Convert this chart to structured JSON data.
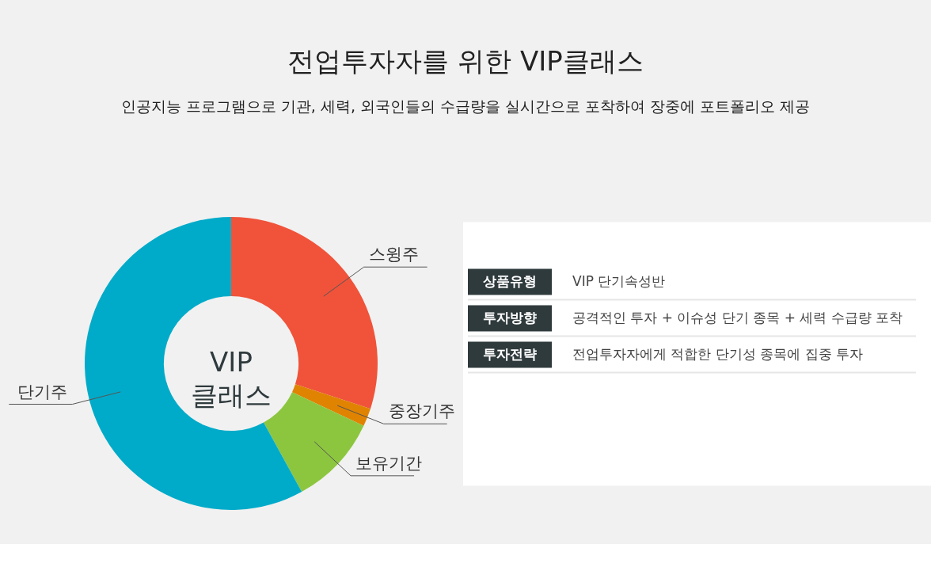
{
  "chart_data": [
    {
      "type": "donut",
      "title": "전업투자자를 위한 VIP클래스",
      "subtitle": "인공지능 프로그램으로 기관, 세력, 외국인들의 수급량을 실시간으로 포착하여 장중에 포트폴리오 제공",
      "categories": [
        "스윙주",
        "중장기주",
        "보유기간",
        "단기주"
      ],
      "values": [
        30,
        2,
        10,
        58
      ],
      "colors": [
        "#f0533a",
        "#e08300",
        "#8cc63f",
        "#00abc9"
      ],
      "annotations": [
        "VIP\n클래스"
      ]
    },
    {
      "type": "other",
      "annotations": [
        "상품유형",
        "VIP 단기속성반",
        "투자방향",
        "공격적인 투자 + 이슈성 단기 종목 + 세력 수급량 포착",
        "투자전략",
        "전업투자자에게 적합한 단기성 종목에 집중 투자"
      ]
    }
  ]
}
